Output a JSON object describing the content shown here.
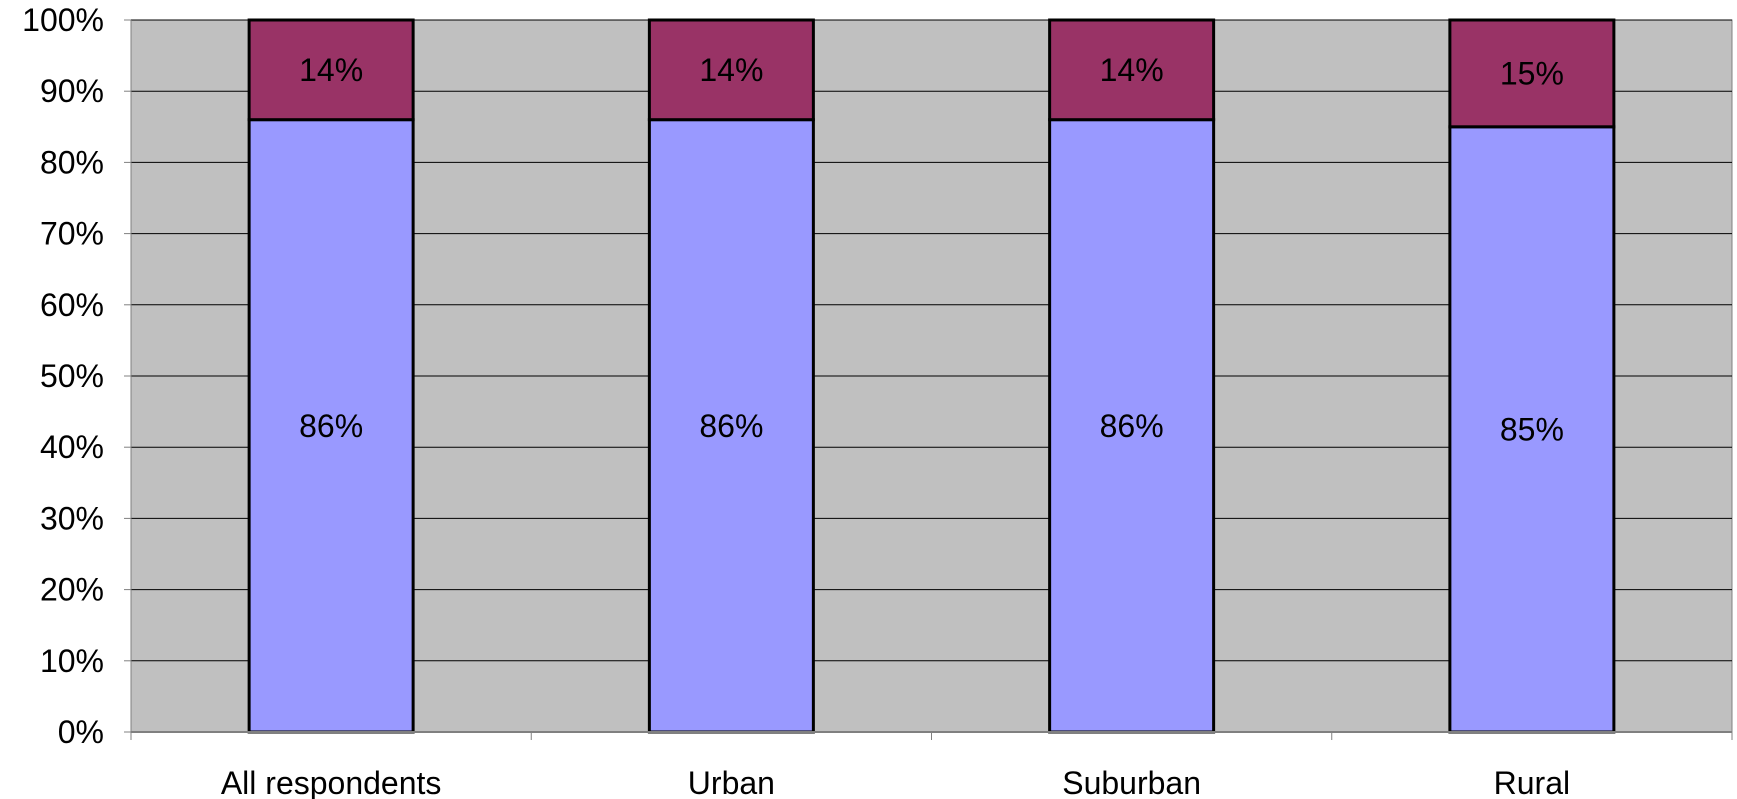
{
  "chart_data": {
    "type": "bar",
    "stacked": true,
    "percent_stacked": true,
    "categories": [
      "All respondents",
      "Urban",
      "Suburban",
      "Rural"
    ],
    "series": [
      {
        "values": [
          86,
          86,
          86,
          85
        ],
        "labels": [
          "86%",
          "86%",
          "86%",
          "85%"
        ],
        "color": "#9999FF"
      },
      {
        "values": [
          14,
          14,
          14,
          15
        ],
        "labels": [
          "14%",
          "14%",
          "14%",
          "15%"
        ],
        "color": "#993366"
      }
    ],
    "y_ticks": [
      "0%",
      "10%",
      "20%",
      "30%",
      "40%",
      "50%",
      "60%",
      "70%",
      "80%",
      "90%",
      "100%"
    ],
    "ylim": [
      0,
      100
    ],
    "grid": true,
    "legend": "none",
    "plot_background": "#C0C0C0",
    "title": "",
    "xlabel": "",
    "ylabel": ""
  }
}
